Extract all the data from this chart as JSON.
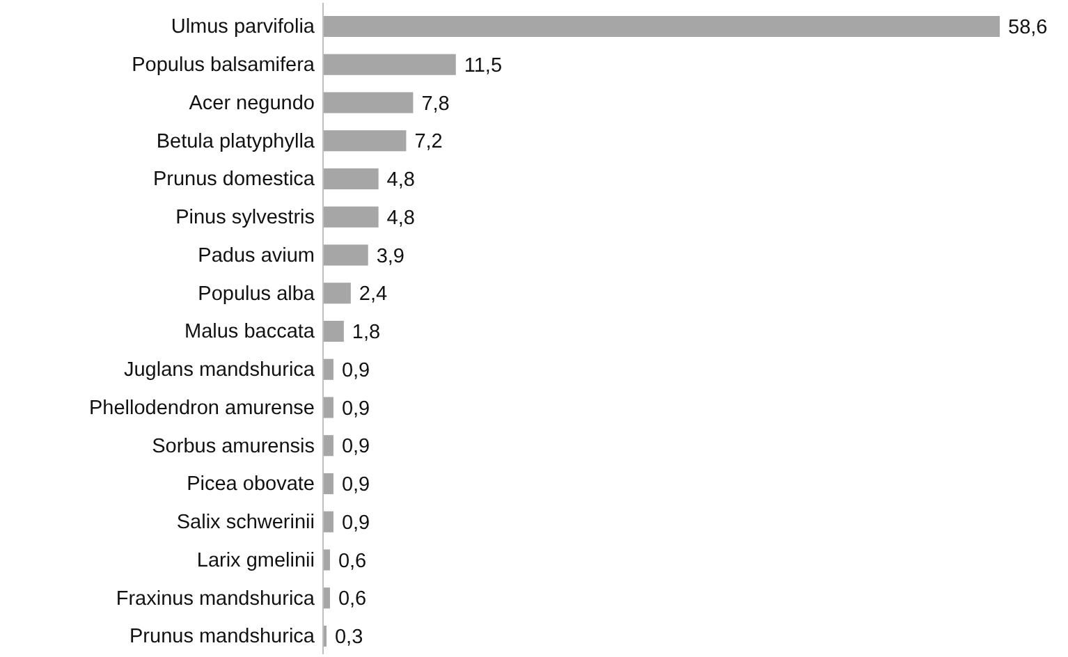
{
  "chart_data": {
    "type": "bar",
    "orientation": "horizontal",
    "categories": [
      "Ulmus parvifolia",
      "Populus balsamifera",
      "Acer negundo",
      "Betula platyphylla",
      "Prunus domestica",
      "Pinus sylvestris",
      "Padus avium",
      "Populus alba",
      "Malus baccata",
      "Juglans mandshurica",
      "Phellodendron amurense",
      "Sorbus amurensis",
      "Picea obovate",
      "Salix schwerinii",
      "Larix gmelinii",
      "Fraxinus mandshurica",
      "Prunus mandshurica"
    ],
    "values": [
      58.6,
      11.5,
      7.8,
      7.2,
      4.8,
      4.8,
      3.9,
      2.4,
      1.8,
      0.9,
      0.9,
      0.9,
      0.9,
      0.9,
      0.6,
      0.6,
      0.3
    ],
    "value_labels": [
      "58,6",
      "11,5",
      "7,8",
      "7,2",
      "4,8",
      "4,8",
      "3,9",
      "2,4",
      "1,8",
      "0,9",
      "0,9",
      "0,9",
      "0,9",
      "0,9",
      "0,6",
      "0,6",
      "0,3"
    ],
    "color": "#a6a6a6"
  }
}
